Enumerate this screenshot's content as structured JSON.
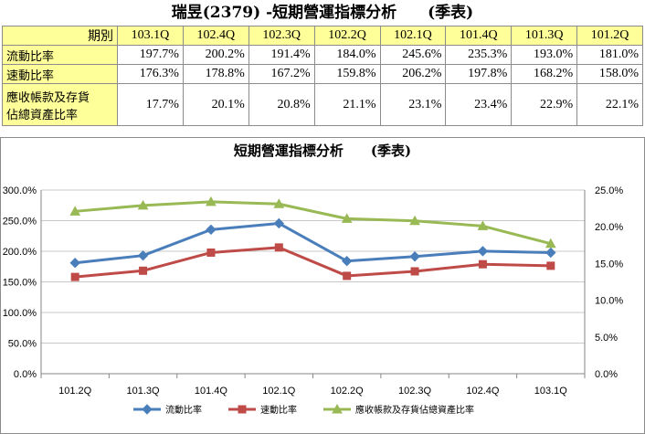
{
  "table": {
    "title": "瑞昱(2379) -短期營運指標分析　　(季表)",
    "header_label": "期別",
    "columns": [
      "103.1Q",
      "102.4Q",
      "102.3Q",
      "102.2Q",
      "102.1Q",
      "101.4Q",
      "101.3Q",
      "101.2Q"
    ],
    "rows": [
      {
        "label_lines": [
          "流動比率"
        ],
        "values": [
          "197.7%",
          "200.2%",
          "191.4%",
          "184.0%",
          "245.6%",
          "235.3%",
          "193.0%",
          "181.0%"
        ]
      },
      {
        "label_lines": [
          "速動比率"
        ],
        "values": [
          "176.3%",
          "178.8%",
          "167.2%",
          "159.8%",
          "206.2%",
          "197.8%",
          "168.2%",
          "158.0%"
        ]
      },
      {
        "label_lines": [
          "應收帳款及存貨",
          "佔總資產比率"
        ],
        "values": [
          "17.7%",
          "20.1%",
          "20.8%",
          "21.1%",
          "23.1%",
          "23.4%",
          "22.9%",
          "22.1%"
        ]
      }
    ]
  },
  "chart_data": {
    "type": "line",
    "title": "短期營運指標分析　　(季表)",
    "x": [
      "101.2Q",
      "101.3Q",
      "101.4Q",
      "102.1Q",
      "102.2Q",
      "102.3Q",
      "102.4Q",
      "103.1Q"
    ],
    "y_left": {
      "min": 0,
      "max": 3.0,
      "ticks": [
        "0.0%",
        "50.0%",
        "100.0%",
        "150.0%",
        "200.0%",
        "250.0%",
        "300.0%"
      ]
    },
    "y_right": {
      "min": 0,
      "max": 0.25,
      "ticks": [
        "0.0%",
        "5.0%",
        "10.0%",
        "15.0%",
        "20.0%",
        "25.0%"
      ]
    },
    "gridlines": true,
    "legend_position": "bottom",
    "series": [
      {
        "name": "流動比率",
        "axis": "left",
        "color": "#4a7ebb",
        "marker": "diamond",
        "values": [
          1.81,
          1.93,
          2.353,
          2.456,
          1.84,
          1.914,
          2.002,
          1.977
        ]
      },
      {
        "name": "速動比率",
        "axis": "left",
        "color": "#be4b48",
        "marker": "square",
        "values": [
          1.58,
          1.682,
          1.978,
          2.062,
          1.598,
          1.672,
          1.788,
          1.763
        ]
      },
      {
        "name": "應收帳款及存貨佔總資產比率",
        "axis": "right",
        "color": "#98b954",
        "marker": "triangle",
        "values": [
          0.221,
          0.229,
          0.234,
          0.231,
          0.211,
          0.208,
          0.201,
          0.177
        ]
      }
    ]
  }
}
